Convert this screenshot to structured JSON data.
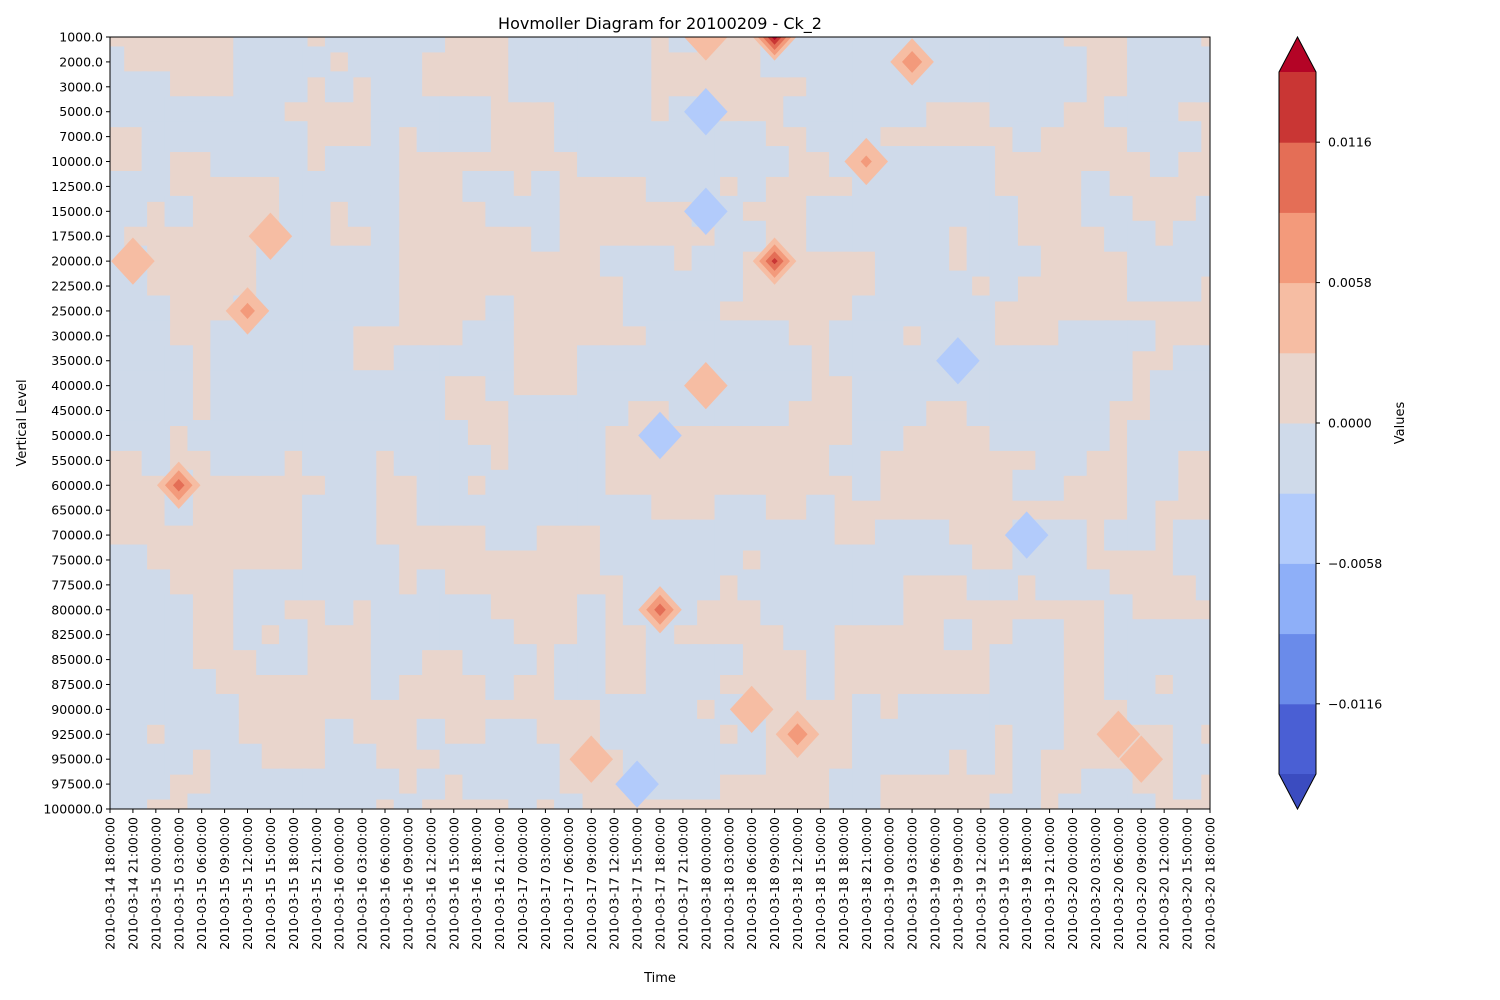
{
  "chart_data": {
    "type": "heatmap",
    "title": "Hovmoller Diagram for 20100209 - Ck_2",
    "xlabel": "Time",
    "ylabel": "Vertical Level",
    "colorbar_label": "Values",
    "y_levels": [
      "1000.0",
      "2000.0",
      "3000.0",
      "5000.0",
      "7000.0",
      "10000.0",
      "12500.0",
      "15000.0",
      "17500.0",
      "20000.0",
      "22500.0",
      "25000.0",
      "30000.0",
      "35000.0",
      "40000.0",
      "45000.0",
      "50000.0",
      "55000.0",
      "60000.0",
      "65000.0",
      "70000.0",
      "75000.0",
      "77500.0",
      "80000.0",
      "82500.0",
      "85000.0",
      "87500.0",
      "90000.0",
      "92500.0",
      "95000.0",
      "97500.0",
      "100000.0"
    ],
    "x_times": [
      "2010-03-14 18:00:00",
      "2010-03-14 21:00:00",
      "2010-03-15 00:00:00",
      "2010-03-15 03:00:00",
      "2010-03-15 06:00:00",
      "2010-03-15 09:00:00",
      "2010-03-15 12:00:00",
      "2010-03-15 15:00:00",
      "2010-03-15 18:00:00",
      "2010-03-15 21:00:00",
      "2010-03-16 00:00:00",
      "2010-03-16 03:00:00",
      "2010-03-16 06:00:00",
      "2010-03-16 09:00:00",
      "2010-03-16 12:00:00",
      "2010-03-16 15:00:00",
      "2010-03-16 18:00:00",
      "2010-03-16 21:00:00",
      "2010-03-17 00:00:00",
      "2010-03-17 03:00:00",
      "2010-03-17 06:00:00",
      "2010-03-17 09:00:00",
      "2010-03-17 12:00:00",
      "2010-03-17 15:00:00",
      "2010-03-17 18:00:00",
      "2010-03-17 21:00:00",
      "2010-03-18 00:00:00",
      "2010-03-18 03:00:00",
      "2010-03-18 06:00:00",
      "2010-03-18 09:00:00",
      "2010-03-18 12:00:00",
      "2010-03-18 15:00:00",
      "2010-03-18 18:00:00",
      "2010-03-18 21:00:00",
      "2010-03-19 00:00:00",
      "2010-03-19 03:00:00",
      "2010-03-19 06:00:00",
      "2010-03-19 09:00:00",
      "2010-03-19 12:00:00",
      "2010-03-19 15:00:00",
      "2010-03-19 18:00:00",
      "2010-03-19 21:00:00",
      "2010-03-20 00:00:00",
      "2010-03-20 03:00:00",
      "2010-03-20 06:00:00",
      "2010-03-20 09:00:00",
      "2010-03-20 12:00:00",
      "2010-03-20 15:00:00",
      "2010-03-20 18:00:00"
    ],
    "colorbar_ticks": [
      "−0.0116",
      "−0.0058",
      "0.0000",
      "0.0058",
      "0.0116"
    ],
    "colorbar_tick_values": [
      -0.0116,
      -0.0058,
      0,
      0.0058,
      0.0116
    ],
    "levels": [
      -0.0145,
      -0.0116,
      -0.0087,
      -0.0058,
      -0.0029,
      0,
      0.0029,
      0.0058,
      0.0087,
      0.0116,
      0.0145
    ],
    "colors": [
      "#4a5fd4",
      "#6a8bea",
      "#8eaff8",
      "#b2cbfb",
      "#cfdaea",
      "#e9d5cc",
      "#f6bda3",
      "#f39a7b",
      "#e46e56",
      "#c93634"
    ],
    "extend_colors": {
      "low": "#3b4cc0",
      "high": "#b40426"
    },
    "near_zero_colors": {
      "negative": "#cfdaea",
      "positive": "#e9d5cc"
    },
    "features": [
      {
        "time": "2010-03-18 09:00:00",
        "level": "1000.0",
        "value": 0.015
      },
      {
        "time": "2010-03-18 09:00:00",
        "level": "20000.0",
        "value": 0.012
      },
      {
        "time": "2010-03-19 03:00:00",
        "level": "2000.0",
        "value": 0.0075
      },
      {
        "time": "2010-03-18 00:00:00",
        "level": "1000.0",
        "value": 0.0045
      },
      {
        "time": "2010-03-18 00:00:00",
        "level": "5000.0",
        "value": -0.0045
      },
      {
        "time": "2010-03-18 00:00:00",
        "level": "15000.0",
        "value": -0.0045
      },
      {
        "time": "2010-03-18 21:00:00",
        "level": "10000.0",
        "value": 0.006
      },
      {
        "time": "2010-03-15 12:00:00",
        "level": "25000.0",
        "value": 0.0065
      },
      {
        "time": "2010-03-15 03:00:00",
        "level": "60000.0",
        "value": 0.01
      },
      {
        "time": "2010-03-17 18:00:00",
        "level": "50000.0",
        "value": -0.0055
      },
      {
        "time": "2010-03-17 18:00:00",
        "level": "80000.0",
        "value": 0.01
      },
      {
        "time": "2010-03-17 15:00:00",
        "level": "97500.0",
        "value": -0.0055
      },
      {
        "time": "2010-03-18 00:00:00",
        "level": "40000.0",
        "value": 0.005
      },
      {
        "time": "2010-03-18 12:00:00",
        "level": "92500.0",
        "value": 0.0075
      },
      {
        "time": "2010-03-17 09:00:00",
        "level": "95000.0",
        "value": 0.0045
      },
      {
        "time": "2010-03-20 09:00:00",
        "level": "95000.0",
        "value": 0.005
      },
      {
        "time": "2010-03-19 09:00:00",
        "level": "35000.0",
        "value": -0.0035
      },
      {
        "time": "2010-03-19 18:00:00",
        "level": "70000.0",
        "value": -0.0035
      },
      {
        "time": "2010-03-14 21:00:00",
        "level": "20000.0",
        "value": 0.0035
      },
      {
        "time": "2010-03-15 15:00:00",
        "level": "17500.0",
        "value": 0.004
      },
      {
        "time": "2010-03-18 06:00:00",
        "level": "90000.0",
        "value": 0.004
      },
      {
        "time": "2010-03-20 06:00:00",
        "level": "92500.0",
        "value": 0.004
      }
    ]
  }
}
